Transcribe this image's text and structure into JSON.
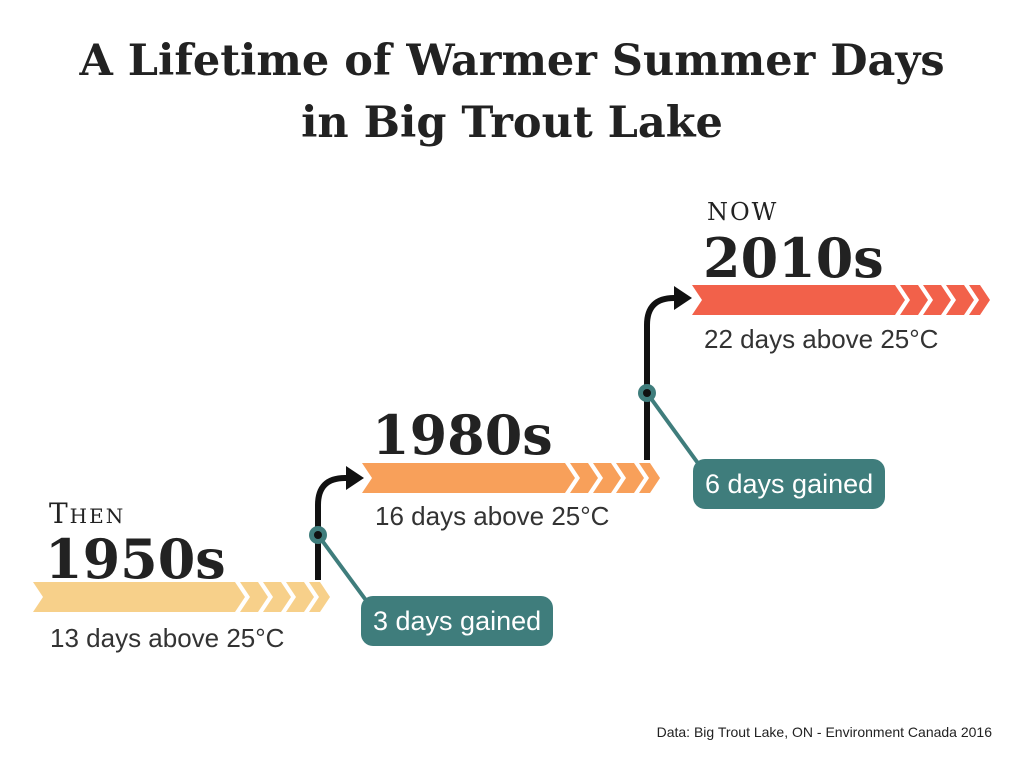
{
  "title_line1": "A Lifetime of Warmer Summer Days",
  "title_line2": "in Big Trout Lake",
  "periods": [
    {
      "tag": "Then",
      "decade": "1950s",
      "summary": "13 days above 25°C",
      "days_above_25c": 13,
      "color": "#f7d08a"
    },
    {
      "tag": "",
      "decade": "1980s",
      "summary": "16 days above 25°C",
      "days_above_25c": 16,
      "color": "#f8a05a"
    },
    {
      "tag": "NOW",
      "decade": "2010s",
      "summary": "22 days above 25°C",
      "days_above_25c": 22,
      "color": "#f2614a"
    }
  ],
  "gains": [
    {
      "label": "3 days gained",
      "days": 3
    },
    {
      "label": "6 days gained",
      "days": 6
    }
  ],
  "colors": {
    "badge": "#3f7d7c",
    "arrow": "#111111",
    "text": "#222222"
  },
  "source": "Data: Big Trout Lake, ON - Environment Canada 2016"
}
